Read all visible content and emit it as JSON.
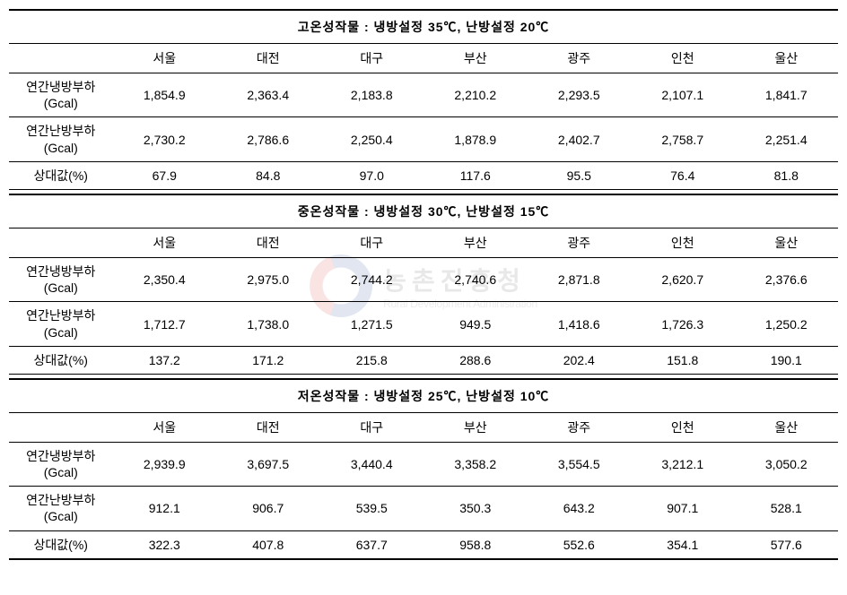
{
  "watermark": {
    "kr": "농촌진흥청",
    "en": "Rural Development Administration"
  },
  "sections": [
    {
      "title": "고온성작물 : 냉방설정 35℃, 난방설정 20℃",
      "cities": [
        "서울",
        "대전",
        "대구",
        "부산",
        "광주",
        "인천",
        "울산"
      ],
      "rows": [
        {
          "label": "연간냉방부하\n(Gcal)",
          "values": [
            "1,854.9",
            "2,363.4",
            "2,183.8",
            "2,210.2",
            "2,293.5",
            "2,107.1",
            "1,841.7"
          ]
        },
        {
          "label": "연간난방부하\n(Gcal)",
          "values": [
            "2,730.2",
            "2,786.6",
            "2,250.4",
            "1,878.9",
            "2,402.7",
            "2,758.7",
            "2,251.4"
          ]
        },
        {
          "label": "상대값(%)",
          "values": [
            "67.9",
            "84.8",
            "97.0",
            "117.6",
            "95.5",
            "76.4",
            "81.8"
          ]
        }
      ]
    },
    {
      "title": "중온성작물 : 냉방설정 30℃, 난방설정 15℃",
      "cities": [
        "서울",
        "대전",
        "대구",
        "부산",
        "광주",
        "인천",
        "울산"
      ],
      "rows": [
        {
          "label": "연간냉방부하\n(Gcal)",
          "values": [
            "2,350.4",
            "2,975.0",
            "2,744.2",
            "2,740.6",
            "2,871.8",
            "2,620.7",
            "2,376.6"
          ]
        },
        {
          "label": "연간난방부하\n(Gcal)",
          "values": [
            "1,712.7",
            "1,738.0",
            "1,271.5",
            "949.5",
            "1,418.6",
            "1,726.3",
            "1,250.2"
          ]
        },
        {
          "label": "상대값(%)",
          "values": [
            "137.2",
            "171.2",
            "215.8",
            "288.6",
            "202.4",
            "151.8",
            "190.1"
          ]
        }
      ]
    },
    {
      "title": "저온성작물 : 냉방설정 25℃, 난방설정 10℃",
      "cities": [
        "서울",
        "대전",
        "대구",
        "부산",
        "광주",
        "인천",
        "울산"
      ],
      "rows": [
        {
          "label": "연간냉방부하\n(Gcal)",
          "values": [
            "2,939.9",
            "3,697.5",
            "3,440.4",
            "3,358.2",
            "3,554.5",
            "3,212.1",
            "3,050.2"
          ]
        },
        {
          "label": "연간난방부하\n(Gcal)",
          "values": [
            "912.1",
            "906.7",
            "539.5",
            "350.3",
            "643.2",
            "907.1",
            "528.1"
          ]
        },
        {
          "label": "상대값(%)",
          "values": [
            "322.3",
            "407.8",
            "637.7",
            "958.8",
            "552.6",
            "354.1",
            "577.6"
          ]
        }
      ]
    }
  ]
}
